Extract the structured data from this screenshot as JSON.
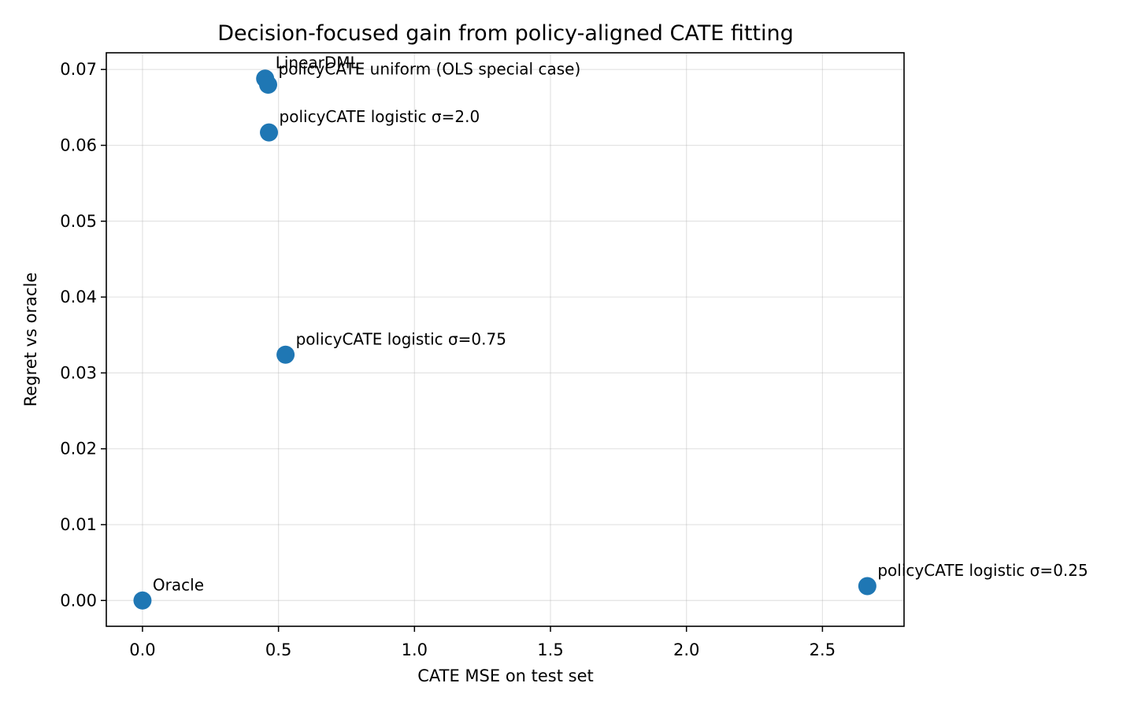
{
  "chart_data": {
    "type": "scatter",
    "title": "Decision-focused gain from policy-aligned CATE fitting",
    "xlabel": "CATE MSE on test set",
    "ylabel": "Regret vs oracle",
    "xlim": [
      -0.133,
      2.8
    ],
    "ylim": [
      -0.0034,
      0.0722
    ],
    "xticks": [
      0.0,
      0.5,
      1.0,
      1.5,
      2.0,
      2.5
    ],
    "xtick_labels": [
      "0.0",
      "0.5",
      "1.0",
      "1.5",
      "2.0",
      "2.5"
    ],
    "yticks": [
      0.0,
      0.01,
      0.02,
      0.03,
      0.04,
      0.05,
      0.06,
      0.07
    ],
    "ytick_labels": [
      "0.00",
      "0.01",
      "0.02",
      "0.03",
      "0.04",
      "0.05",
      "0.06",
      "0.07"
    ],
    "grid": true,
    "marker_color": "#1f77b4",
    "points": [
      {
        "label": "Oracle",
        "x": 0.0,
        "y": 0.0
      },
      {
        "label": "LinearDML",
        "x": 0.451,
        "y": 0.0688
      },
      {
        "label": "policyCATE uniform (OLS special case)",
        "x": 0.462,
        "y": 0.068
      },
      {
        "label": "policyCATE logistic σ=2.0",
        "x": 0.465,
        "y": 0.0617
      },
      {
        "label": "policyCATE logistic σ=0.75",
        "x": 0.526,
        "y": 0.0324
      },
      {
        "label": "policyCATE logistic σ=0.25",
        "x": 2.665,
        "y": 0.0019
      }
    ]
  }
}
